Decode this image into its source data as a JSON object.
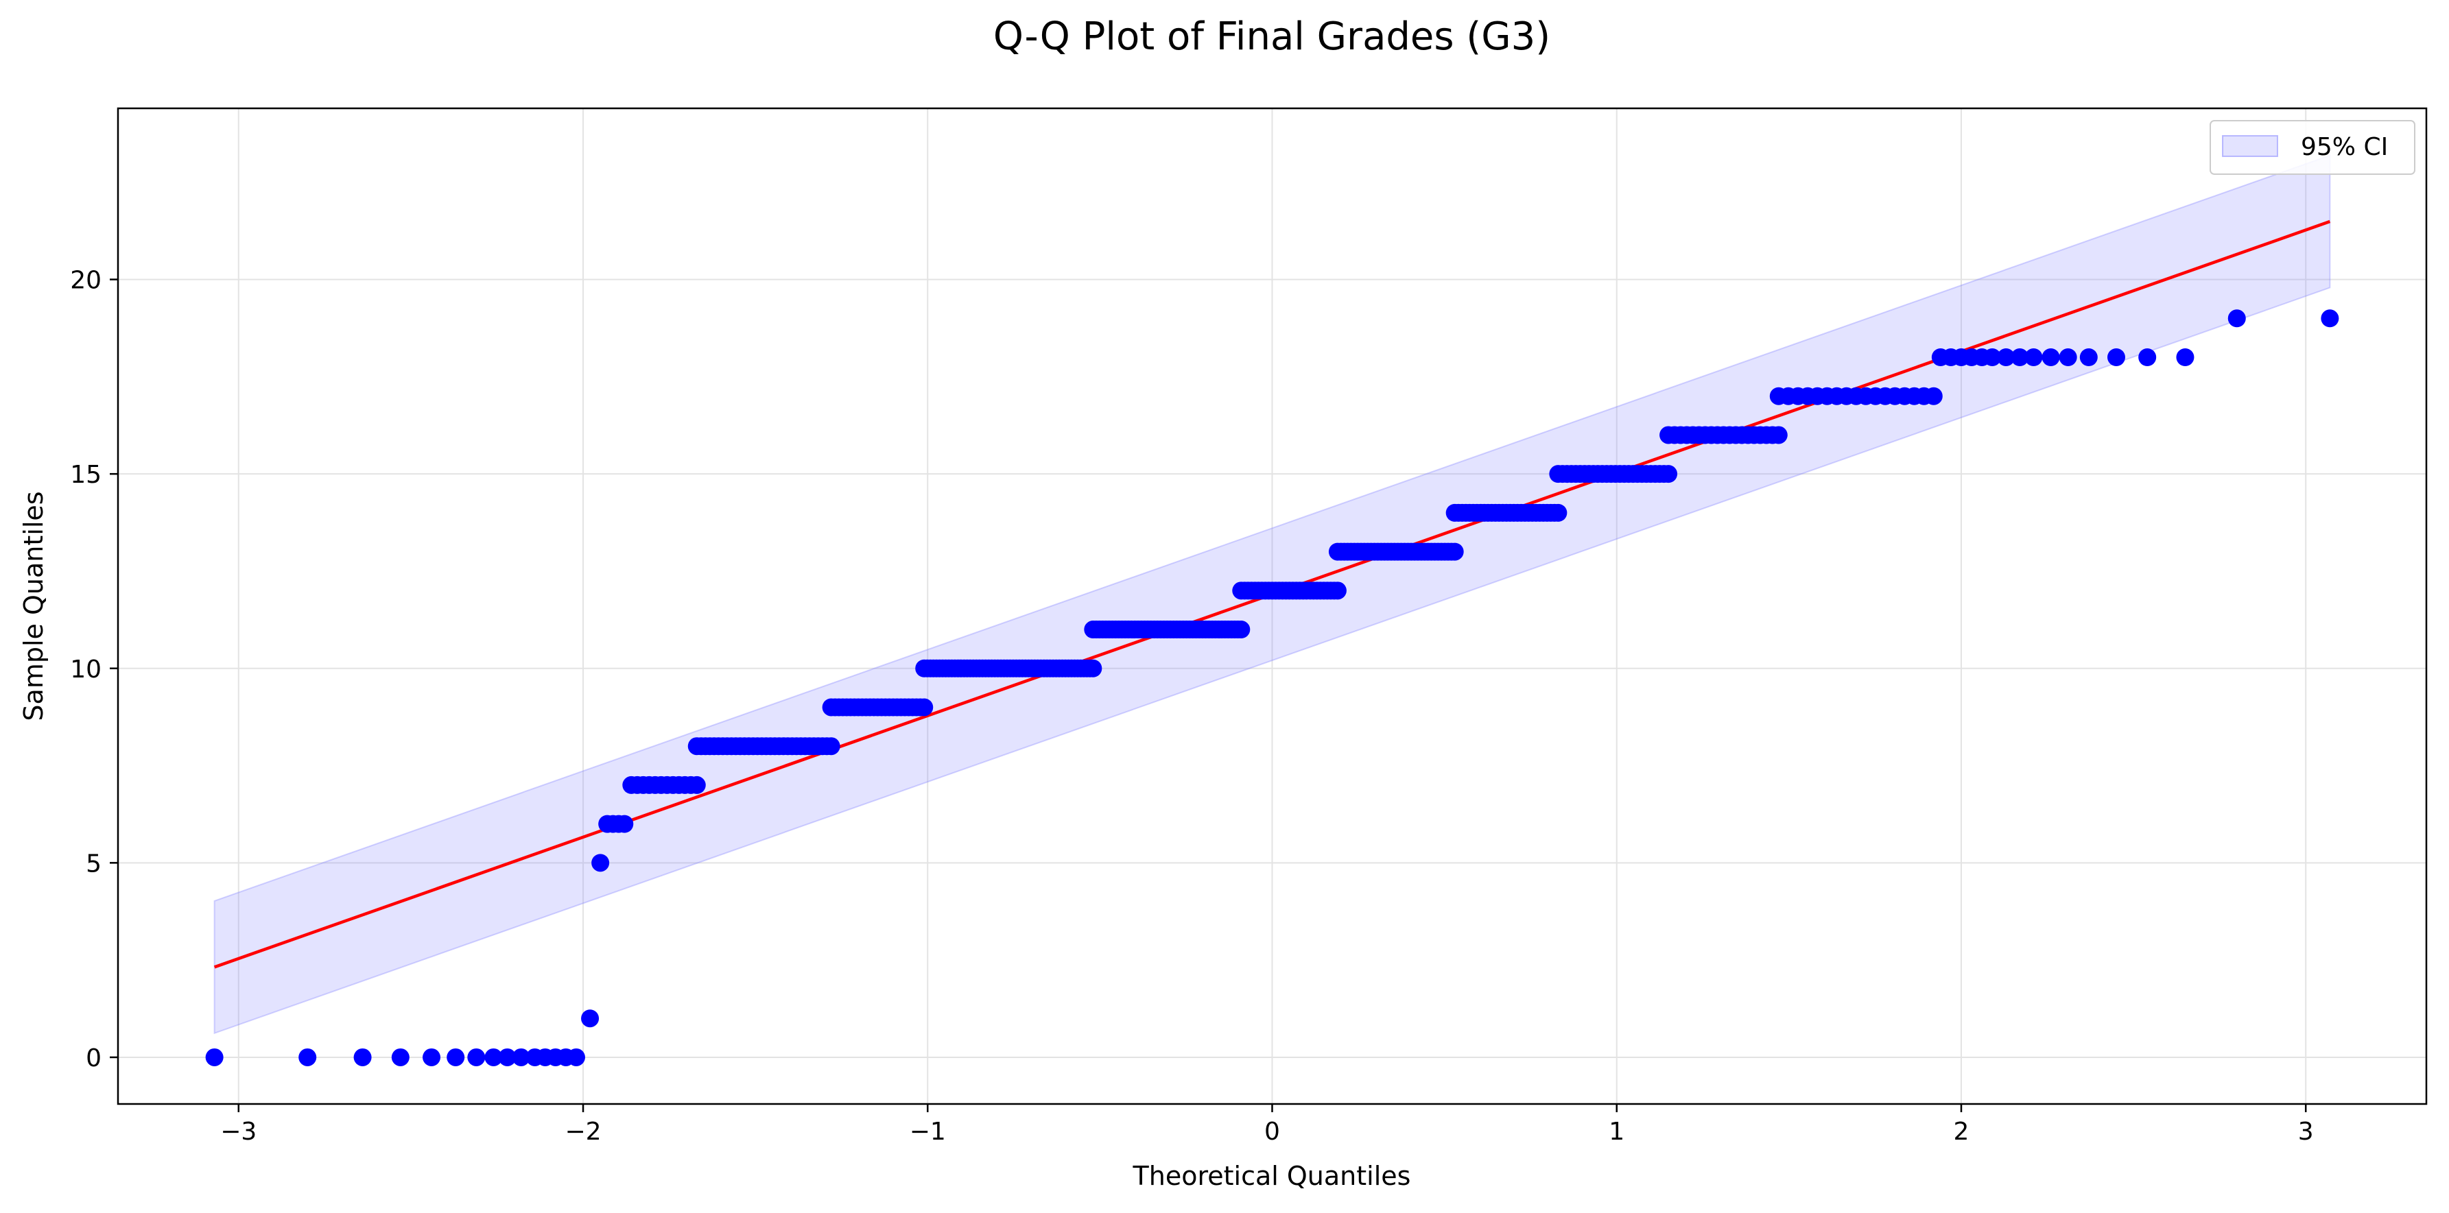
{
  "chart_data": {
    "type": "scatter",
    "title": "Q-Q Plot of Final Grades (G3)",
    "xlabel": "Theoretical Quantiles",
    "ylabel": "Sample Quantiles",
    "xlim": [
      -3.35,
      3.35
    ],
    "ylim": [
      -1.2,
      24.4
    ],
    "xticks": [
      -3,
      -2,
      -1,
      0,
      1,
      2,
      3
    ],
    "yticks": [
      0,
      5,
      10,
      15,
      20
    ],
    "grid": true,
    "legend": {
      "position": "top-right",
      "entries": [
        "95% CI"
      ]
    },
    "colors": {
      "points": "#0000ff",
      "line": "#ff0000",
      "band": "#8080ff"
    },
    "fit_line": {
      "x": [
        -3.07,
        3.07
      ],
      "y": [
        2.32,
        21.49
      ]
    },
    "confidence_band": {
      "x": [
        -3.07,
        3.07
      ],
      "lower": [
        0.62,
        19.79
      ],
      "upper": [
        4.02,
        23.19
      ]
    },
    "points": {
      "name": "Sample quantiles vs theoretical quantiles",
      "segments": [
        {
          "y": 0,
          "x": [
            -3.07,
            -2.8,
            -2.64,
            -2.53,
            -2.44,
            -2.37,
            -2.31,
            -2.26,
            -2.22,
            -2.18,
            -2.14,
            -2.11,
            -2.08,
            -2.05,
            -2.02
          ]
        },
        {
          "y": 1,
          "x": [
            -1.98
          ]
        },
        {
          "y": 5,
          "x": [
            -1.95
          ]
        },
        {
          "y": 6,
          "x_range": [
            -1.93,
            -1.88
          ],
          "n": 4
        },
        {
          "y": 7,
          "x_range": [
            -1.86,
            -1.67
          ],
          "n": 12
        },
        {
          "y": 8,
          "x_range": [
            -1.67,
            -1.28
          ],
          "n": 32
        },
        {
          "y": 9,
          "x_range": [
            -1.28,
            -1.01
          ],
          "n": 25
        },
        {
          "y": 10,
          "x_range": [
            -1.01,
            -0.52
          ],
          "n": 56
        },
        {
          "y": 11,
          "x_range": [
            -0.52,
            -0.09
          ],
          "n": 47
        },
        {
          "y": 12,
          "x_range": [
            -0.09,
            0.19
          ],
          "n": 29
        },
        {
          "y": 13,
          "x_range": [
            0.19,
            0.53
          ],
          "n": 36
        },
        {
          "y": 14,
          "x_range": [
            0.53,
            0.83
          ],
          "n": 29
        },
        {
          "y": 15,
          "x_range": [
            0.83,
            1.15
          ],
          "n": 26
        },
        {
          "y": 16,
          "x_range": [
            1.15,
            1.47
          ],
          "n": 19
        },
        {
          "y": 17,
          "x_range": [
            1.47,
            1.92
          ],
          "n": 17
        },
        {
          "y": 18,
          "x": [
            1.94,
            1.97,
            2.0,
            2.03,
            2.06,
            2.09,
            2.13,
            2.17,
            2.21,
            2.26,
            2.31,
            2.37,
            2.45,
            2.54,
            2.65
          ]
        },
        {
          "y": 19,
          "x": [
            2.8,
            3.07
          ]
        }
      ]
    }
  }
}
